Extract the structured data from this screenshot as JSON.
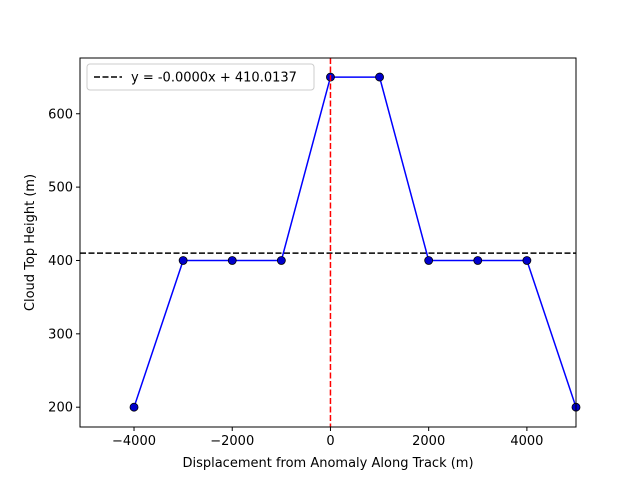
{
  "chart_data": {
    "type": "line",
    "title": "",
    "xlabel": "Displacement from Anomaly Along Track (m)",
    "ylabel": "Cloud Top Height (m)",
    "xlim": [
      -5100,
      5000
    ],
    "ylim": [
      173,
      676
    ],
    "x_ticks": [
      -4000,
      -2000,
      0,
      2000,
      4000
    ],
    "x_tick_labels": [
      "−4000",
      "−2000",
      "0",
      "2000",
      "4000"
    ],
    "y_ticks": [
      200,
      300,
      400,
      500,
      600
    ],
    "y_tick_labels": [
      "200",
      "300",
      "400",
      "500",
      "600"
    ],
    "grid": false,
    "legend_position": "top-left",
    "series": [
      {
        "style": "line-with-markers",
        "color": "#0000ff",
        "marker_color": "#0000cc",
        "x": [
          -4000,
          -3000,
          -2000,
          -1000,
          0,
          1000,
          2000,
          3000,
          4000,
          5000
        ],
        "y": [
          200,
          400,
          400,
          400,
          650,
          650,
          400,
          400,
          400,
          200
        ]
      }
    ],
    "fit_line": {
      "label": "y = -0.0000x + 410.0137",
      "slope": 0,
      "intercept": 410.0137,
      "color": "#000000",
      "style": "dashed"
    },
    "anomaly_line": {
      "x": 0,
      "color": "#ff0000",
      "style": "dashed"
    }
  }
}
